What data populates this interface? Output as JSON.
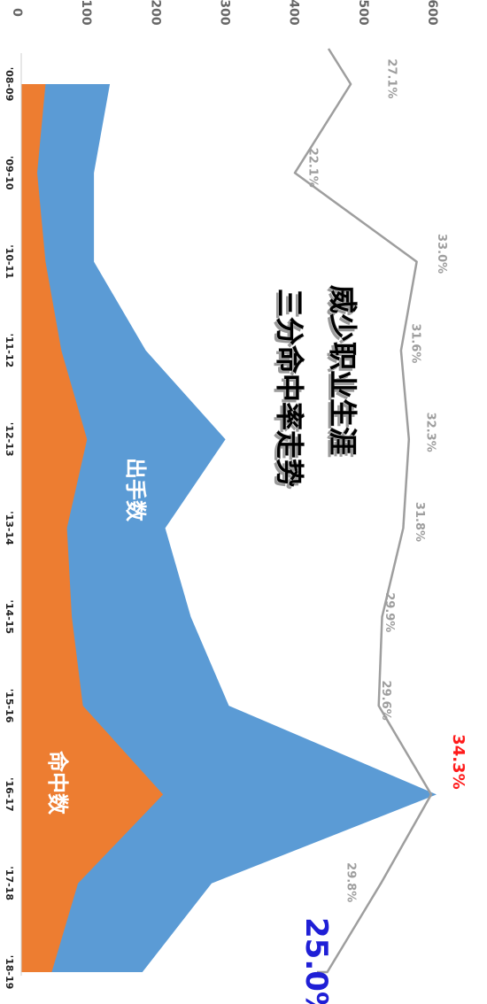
{
  "chart_data": {
    "type": "area",
    "title_line1": "威少职业生涯",
    "title_line2": "三分命中率走势",
    "categories": [
      "'08-09",
      "'09-10",
      "'10-11",
      "'11-12",
      "'12-13",
      "'13-14",
      "'14-15",
      "'15-16",
      "'16-17",
      "'17-18",
      "'18-19"
    ],
    "yticks": [
      "0",
      "100",
      "200",
      "300",
      "400",
      "500",
      "600"
    ],
    "ylim": [
      0,
      600
    ],
    "series": [
      {
        "name": "出手数",
        "values": [
          128,
          105,
          105,
          180,
          295,
          208,
          245,
          300,
          600,
          275,
          175
        ],
        "color": "#5b9bd5"
      },
      {
        "name": "命中数",
        "values": [
          35,
          23,
          35,
          58,
          95,
          66,
          73,
          89,
          205,
          82,
          44
        ],
        "color": "#ed7d31"
      }
    ],
    "percent_line": {
      "values": [
        "27.1%",
        "22.1%",
        "33.0%",
        "31.6%",
        "32.3%",
        "31.8%",
        "29.9%",
        "29.6%",
        "34.3%",
        "29.8%",
        "25.0%"
      ],
      "numeric": [
        27.1,
        22.1,
        33.0,
        31.6,
        32.3,
        31.8,
        29.9,
        29.6,
        34.3,
        29.8,
        25.0
      ],
      "color": "#9e9e9e",
      "highlight_max_color": "#ff1a1a",
      "highlight_last_color": "#1f1fd6"
    },
    "grid": false,
    "legend": "inline"
  }
}
